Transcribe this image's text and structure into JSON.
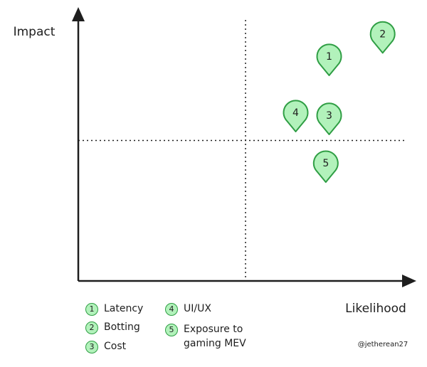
{
  "chart_data": {
    "type": "scatter",
    "x_label": "Likelihood",
    "y_label": "Impact",
    "xlim": [
      0,
      10
    ],
    "ylim": [
      0,
      10
    ],
    "x_divider": 5,
    "y_divider": 5,
    "labels": [
      "1",
      "2",
      "3",
      "4",
      "5"
    ],
    "names": [
      "Latency",
      "Botting",
      "Cost",
      "UI/UX",
      "Exposure to gaming MEV"
    ],
    "x": [
      7.5,
      9.1,
      7.5,
      6.5,
      7.4
    ],
    "y": [
      8,
      8.8,
      5.9,
      6,
      4.2
    ],
    "color": "#b2f2bb",
    "stroke": "#2f9e44",
    "credit": "@jetherean27"
  }
}
